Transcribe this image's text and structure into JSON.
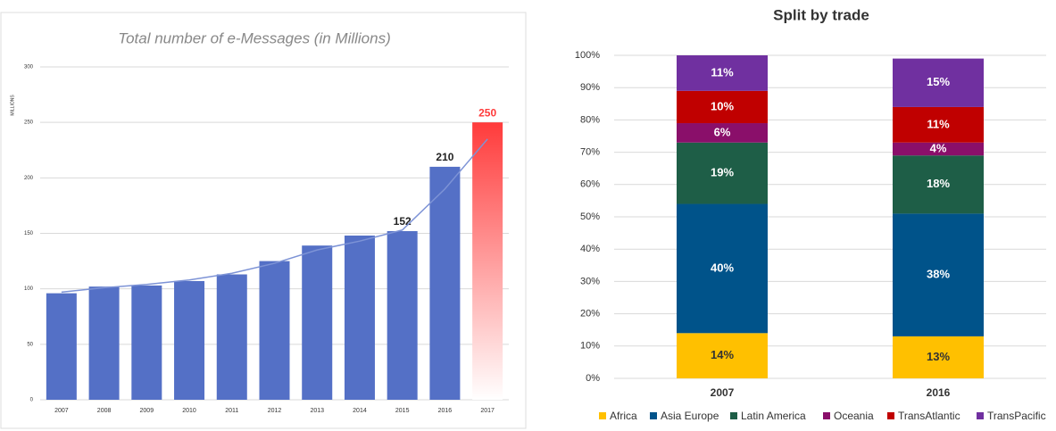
{
  "chart_data": [
    {
      "type": "bar",
      "title": "Total number of e-Messages (in Millions)",
      "y_label": "MILLIONS",
      "categories": [
        "2007",
        "2008",
        "2009",
        "2010",
        "2011",
        "2012",
        "2013",
        "2014",
        "2015",
        "2016",
        "2017"
      ],
      "values": [
        96,
        102,
        103,
        107,
        113,
        125,
        139,
        148,
        152,
        210,
        250
      ],
      "line_values": [
        97,
        101,
        104,
        108,
        114,
        123,
        135,
        143,
        153,
        190,
        235
      ],
      "color": "#5470c6",
      "line_color": "#7d93d6",
      "highlight_index": 10,
      "highlight_color": "#ff3b3b",
      "labeled_indices": [
        8,
        9,
        10
      ],
      "ylim": [
        0,
        300
      ],
      "yticks": [
        0,
        50,
        100,
        150,
        200,
        250,
        300
      ],
      "grid": true
    },
    {
      "type": "stacked_bar",
      "title": "Split by trade",
      "categories": [
        "2007",
        "2016"
      ],
      "series": [
        {
          "name": "Africa",
          "color": "#ffc000",
          "values": [
            14,
            13
          ],
          "value_labels": [
            "14%",
            "13%"
          ]
        },
        {
          "name": "Asia Europe",
          "color": "#00538a",
          "values": [
            40,
            38
          ],
          "value_labels": [
            "40%",
            "38%"
          ]
        },
        {
          "name": "Latin America",
          "color": "#1e5e47",
          "values": [
            19,
            18
          ],
          "value_labels": [
            "19%",
            "18%"
          ]
        },
        {
          "name": "Oceania",
          "color": "#8a0f6a",
          "values": [
            6,
            4
          ],
          "value_labels": [
            "6%",
            "4%"
          ]
        },
        {
          "name": "TransAtlantic",
          "color": "#c00000",
          "values": [
            10,
            11
          ],
          "value_labels": [
            "10%",
            "11%"
          ]
        },
        {
          "name": "TransPacific",
          "color": "#7030a0",
          "values": [
            11,
            15
          ],
          "value_labels": [
            "11%",
            "15%"
          ]
        }
      ],
      "ylim": [
        0,
        100
      ],
      "yticks": [
        {
          "value": 0,
          "label": "0%"
        },
        {
          "value": 10,
          "label": "10%"
        },
        {
          "value": 20,
          "label": "20%"
        },
        {
          "value": 30,
          "label": "30%"
        },
        {
          "value": 40,
          "label": "40%"
        },
        {
          "value": 50,
          "label": "50%"
        },
        {
          "value": 60,
          "label": "60%"
        },
        {
          "value": 70,
          "label": "70%"
        },
        {
          "value": 80,
          "label": "80%"
        },
        {
          "value": 90,
          "label": "90%"
        },
        {
          "value": 100,
          "label": "100%"
        }
      ],
      "grid": true,
      "legend": "bottom"
    }
  ]
}
